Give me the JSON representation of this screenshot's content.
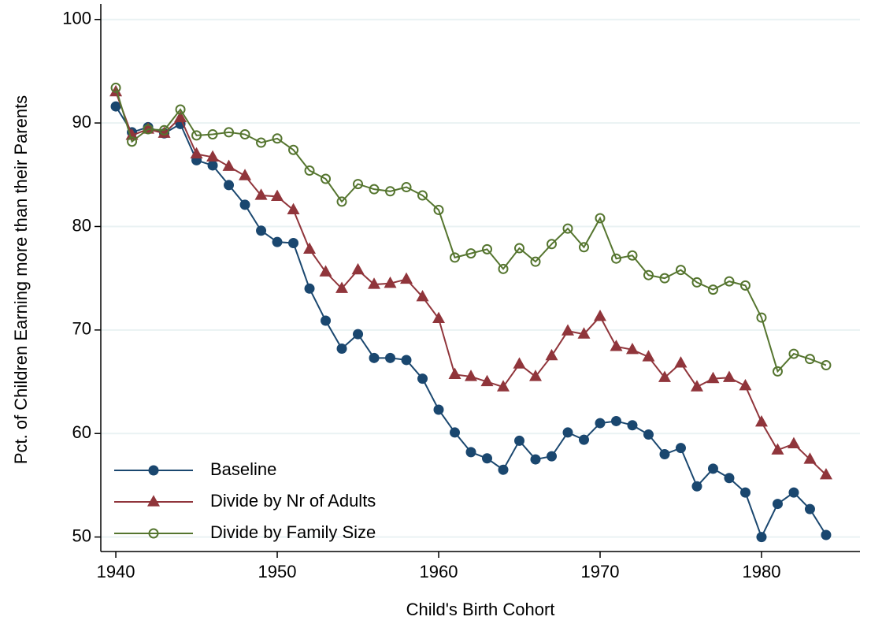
{
  "chart_data": {
    "type": "line",
    "x_label": "Child's Birth Cohort",
    "y_label": "Pct. of Children Earning more than their Parents",
    "x": [
      1940,
      1941,
      1942,
      1943,
      1944,
      1945,
      1946,
      1947,
      1948,
      1949,
      1950,
      1951,
      1952,
      1953,
      1954,
      1955,
      1956,
      1957,
      1958,
      1959,
      1960,
      1961,
      1962,
      1963,
      1964,
      1965,
      1966,
      1967,
      1968,
      1969,
      1970,
      1971,
      1972,
      1973,
      1974,
      1975,
      1976,
      1977,
      1978,
      1979,
      1980,
      1981,
      1982,
      1983,
      1984
    ],
    "series": [
      {
        "name": "Baseline",
        "color": "#1a476f",
        "marker": "circle",
        "values": [
          91.6,
          89.1,
          89.6,
          89.0,
          89.9,
          86.4,
          85.9,
          84.0,
          82.1,
          79.6,
          78.5,
          78.4,
          74.0,
          70.9,
          68.2,
          69.6,
          67.3,
          67.3,
          67.1,
          65.3,
          62.3,
          60.1,
          58.2,
          57.6,
          56.5,
          59.3,
          57.5,
          57.8,
          60.1,
          59.4,
          61.0,
          61.2,
          60.8,
          59.9,
          58.0,
          58.6,
          54.9,
          56.6,
          55.7,
          54.3,
          50.0,
          53.2,
          54.3,
          52.7,
          50.2
        ]
      },
      {
        "name": "Divide by Nr of Adults",
        "color": "#90353b",
        "marker": "triangle",
        "values": [
          93.0,
          88.8,
          89.4,
          89.0,
          90.5,
          87.0,
          86.7,
          85.8,
          84.9,
          83.0,
          82.9,
          81.6,
          77.8,
          75.6,
          74.0,
          75.8,
          74.4,
          74.5,
          74.9,
          73.2,
          71.1,
          65.7,
          65.5,
          65.0,
          64.5,
          66.7,
          65.5,
          67.5,
          69.9,
          69.6,
          71.3,
          68.4,
          68.1,
          67.4,
          65.4,
          66.8,
          64.5,
          65.3,
          65.4,
          64.6,
          61.1,
          58.4,
          59.0,
          57.5,
          56.0
        ]
      },
      {
        "name": "Divide by Family Size",
        "color": "#55752f",
        "marker": "hollow-circle",
        "values": [
          93.4,
          88.2,
          89.4,
          89.3,
          91.3,
          88.8,
          88.9,
          89.1,
          88.9,
          88.1,
          88.5,
          87.4,
          85.4,
          84.6,
          82.4,
          84.1,
          83.6,
          83.4,
          83.8,
          83.0,
          81.6,
          77.0,
          77.4,
          77.8,
          75.9,
          77.9,
          76.6,
          78.3,
          79.8,
          78.0,
          80.8,
          76.9,
          77.2,
          75.3,
          75.0,
          75.8,
          74.6,
          73.9,
          74.7,
          74.3,
          71.2,
          66.0,
          67.7,
          67.2,
          66.6
        ]
      }
    ],
    "xlim": [
      1939.07,
      1986.1
    ],
    "xticks": [
      1940,
      1950,
      1960,
      1970,
      1980
    ],
    "ylim": [
      48.6,
      101.5
    ],
    "yticks": [
      50,
      60,
      70,
      80,
      90,
      100
    ],
    "grid": true,
    "legend": "lower left"
  }
}
